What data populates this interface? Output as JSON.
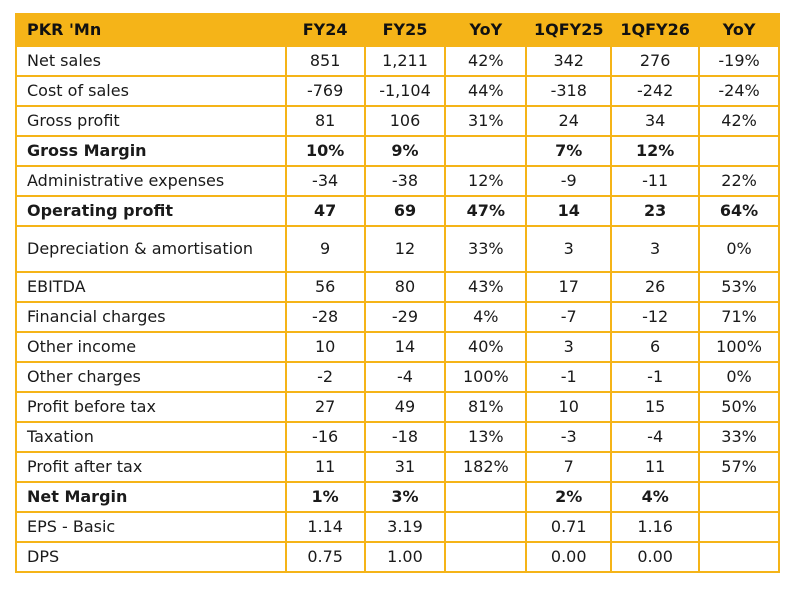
{
  "table": {
    "headers": [
      "PKR 'Mn",
      "FY24",
      "FY25",
      "YoY",
      "1QFY25",
      "1QFY26",
      "YoY"
    ],
    "rows": [
      {
        "label": "Net sales",
        "bold": false,
        "values": [
          "851",
          "1,211",
          "42%",
          "342",
          "276",
          "-19%"
        ]
      },
      {
        "label": "Cost of sales",
        "bold": false,
        "values": [
          "-769",
          "-1,104",
          "44%",
          "-318",
          "-242",
          "-24%"
        ]
      },
      {
        "label": "Gross profit",
        "bold": false,
        "values": [
          "81",
          "106",
          "31%",
          "24",
          "34",
          "42%"
        ]
      },
      {
        "label": "Gross Margin",
        "bold": true,
        "values": [
          "10%",
          "9%",
          "",
          "7%",
          "12%",
          ""
        ]
      },
      {
        "label": "Administrative expenses",
        "bold": false,
        "values": [
          "-34",
          "-38",
          "12%",
          "-9",
          "-11",
          "22%"
        ]
      },
      {
        "label": "Operating profit",
        "bold": true,
        "values": [
          "47",
          "69",
          "47%",
          "14",
          "23",
          "64%"
        ]
      },
      {
        "label": "Depreciation & amortisation",
        "bold": false,
        "wrap": true,
        "values": [
          "9",
          "12",
          "33%",
          "3",
          "3",
          "0%"
        ]
      },
      {
        "label": "EBITDA",
        "bold": false,
        "values": [
          "56",
          "80",
          "43%",
          "17",
          "26",
          "53%"
        ]
      },
      {
        "label": "Financial charges",
        "bold": false,
        "values": [
          "-28",
          "-29",
          "4%",
          "-7",
          "-12",
          "71%"
        ]
      },
      {
        "label": "Other income",
        "bold": false,
        "values": [
          "10",
          "14",
          "40%",
          "3",
          "6",
          "100%"
        ]
      },
      {
        "label": "Other charges",
        "bold": false,
        "values": [
          "-2",
          "-4",
          "100%",
          "-1",
          "-1",
          "0%"
        ]
      },
      {
        "label": "Profit before tax",
        "bold": false,
        "values": [
          "27",
          "49",
          "81%",
          "10",
          "15",
          "50%"
        ]
      },
      {
        "label": "Taxation",
        "bold": false,
        "values": [
          "-16",
          "-18",
          "13%",
          "-3",
          "-4",
          "33%"
        ]
      },
      {
        "label": "Profit after tax",
        "bold": false,
        "values": [
          "11",
          "31",
          "182%",
          "7",
          "11",
          "57%"
        ]
      },
      {
        "label": "Net Margin",
        "bold": true,
        "values": [
          "1%",
          "3%",
          "",
          "2%",
          "4%",
          ""
        ]
      },
      {
        "label": "EPS - Basic",
        "bold": false,
        "values": [
          "1.14",
          "3.19",
          "",
          "0.71",
          "1.16",
          ""
        ]
      },
      {
        "label": "DPS",
        "bold": false,
        "values": [
          "0.75",
          "1.00",
          "",
          "0.00",
          "0.00",
          ""
        ]
      }
    ]
  },
  "colors": {
    "header_bg": "#f5b418",
    "border": "#f5b418"
  }
}
